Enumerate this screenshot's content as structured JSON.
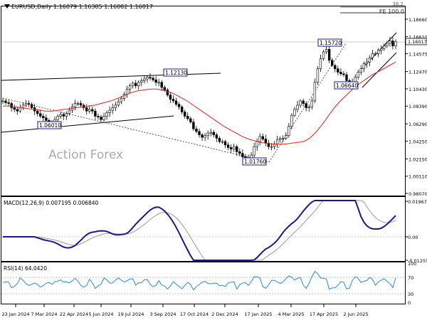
{
  "header": {
    "symbol": "EURUSD,Daily",
    "ohlc": "1.16079 1.16305 1.16002 1.16017",
    "top_right_value": "38.2",
    "fibo_label": "FE 100.0"
  },
  "watermark": "Action Forex",
  "price_pane": {
    "axis_labels": [
      "1.18660",
      "1.16610",
      "1.14575",
      "1.12470",
      "1.10430",
      "1.08390",
      "1.06290",
      "1.04250",
      "1.02150",
      "1.00110",
      "0.98070"
    ],
    "axis_values": [
      1.1866,
      1.1661,
      1.14575,
      1.1247,
      1.1043,
      1.0839,
      1.0629,
      1.0425,
      1.0215,
      1.0011,
      0.9807
    ],
    "current_price_label": "1.16017",
    "current_price": 1.16017,
    "annotations": [
      {
        "text": "1.12130"
      },
      {
        "text": "1.06010"
      },
      {
        "text": "1.01760"
      },
      {
        "text": "1.15720"
      },
      {
        "text": "1.06640"
      }
    ]
  },
  "macd_pane": {
    "label": "MACD(12,26,9) 0.007195 0.006840",
    "axis_labels": [
      "0.019679",
      "0.00",
      "-0.012552"
    ]
  },
  "rsi_pane": {
    "label": "RSI(14) 64.0420",
    "axis_labels": [
      "100",
      "70",
      "30",
      "0"
    ]
  },
  "time_axis": [
    "23 Jan 2024",
    "7 Mar 2024",
    "22 Apr 2024",
    "5 Jun 2024",
    "19 Jul 2024",
    "3 Sep 2024",
    "17 Oct 2024",
    "2 Dec 2024",
    "17 Jan 2025",
    "4 Mar 2025",
    "17 Apr 2025",
    "2 Jun 2025"
  ],
  "chart_data": {
    "type": "line",
    "title": "EURUSD,Daily",
    "series": [
      {
        "values": [
          1.09,
          1.088,
          1.087,
          1.082,
          1.08,
          1.078,
          1.082,
          1.085,
          1.087,
          1.086,
          1.082,
          1.078,
          1.075,
          1.072,
          1.07,
          1.067,
          1.064,
          1.062,
          1.068,
          1.072,
          1.074,
          1.072,
          1.075,
          1.079,
          1.083,
          1.087,
          1.087,
          1.085,
          1.082,
          1.078,
          1.08,
          1.078,
          1.072,
          1.071,
          1.068,
          1.072,
          1.076,
          1.079,
          1.082,
          1.085,
          1.089,
          1.093,
          1.098,
          1.104,
          1.108,
          1.111,
          1.108,
          1.112,
          1.114,
          1.116,
          1.118,
          1.117,
          1.115,
          1.112,
          1.112,
          1.106,
          1.103,
          1.097,
          1.092,
          1.09,
          1.086,
          1.083,
          1.077,
          1.072,
          1.069,
          1.065,
          1.057,
          1.054,
          1.05,
          1.047,
          1.049,
          1.052,
          1.053,
          1.05,
          1.046,
          1.042,
          1.042,
          1.038,
          1.035,
          1.033,
          1.036,
          1.03,
          1.028,
          1.024,
          1.022,
          1.02,
          1.026,
          1.036,
          1.042,
          1.048,
          1.045,
          1.04,
          1.036,
          1.036,
          1.039,
          1.044,
          1.046,
          1.046,
          1.049,
          1.06,
          1.073,
          1.08,
          1.085,
          1.09,
          1.087,
          1.082,
          1.083,
          1.09,
          1.112,
          1.128,
          1.14,
          1.148,
          1.151,
          1.138,
          1.132,
          1.128,
          1.124,
          1.122,
          1.121,
          1.114,
          1.109,
          1.112,
          1.118,
          1.124,
          1.128,
          1.134,
          1.136,
          1.141,
          1.146,
          1.146,
          1.15,
          1.152,
          1.155,
          1.158,
          1.161,
          1.155,
          1.16
        ]
      },
      {
        "values": [
          1.084,
          1.084,
          1.083,
          1.082,
          1.081,
          1.08,
          1.079,
          1.078,
          1.078,
          1.079,
          1.08,
          1.081,
          1.082,
          1.083,
          1.084,
          1.085,
          1.087,
          1.089,
          1.091,
          1.094,
          1.097,
          1.1,
          1.102,
          1.103,
          1.104,
          1.104,
          1.103,
          1.101,
          1.098,
          1.094,
          1.09,
          1.085,
          1.08,
          1.075,
          1.07,
          1.065,
          1.06,
          1.056,
          1.052,
          1.048,
          1.045,
          1.043,
          1.041,
          1.04,
          1.039,
          1.039,
          1.039,
          1.04,
          1.041,
          1.042,
          1.046,
          1.053,
          1.062,
          1.072,
          1.082,
          1.09,
          1.097,
          1.104,
          1.11,
          1.115,
          1.12,
          1.124,
          1.128,
          1.132,
          1.136
        ]
      }
    ]
  }
}
